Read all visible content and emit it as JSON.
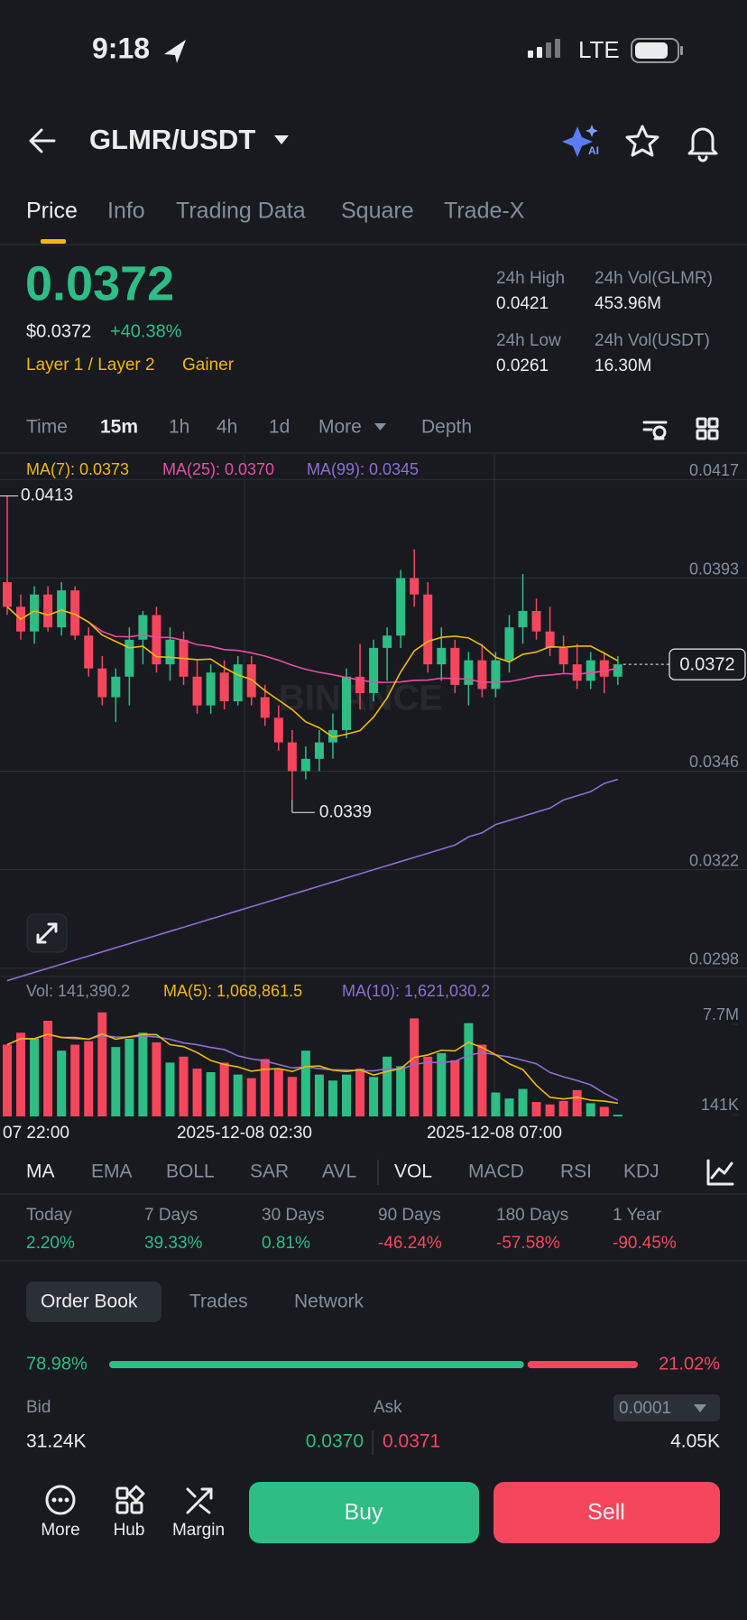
{
  "status": {
    "time": "9:18",
    "network": "LTE"
  },
  "header": {
    "pair": "GLMR/USDT"
  },
  "tabs": [
    "Price",
    "Info",
    "Trading Data",
    "Square",
    "Trade-X"
  ],
  "price": {
    "last": "0.0372",
    "usd": "$0.0372",
    "change": "+40.38%",
    "tags": [
      "Layer 1 / Layer 2",
      "Gainer"
    ]
  },
  "stats": [
    {
      "label": "24h High",
      "value": "0.0421"
    },
    {
      "label": "24h Vol(GLMR)",
      "value": "453.96M"
    },
    {
      "label": "24h Low",
      "value": "0.0261"
    },
    {
      "label": "24h Vol(USDT)",
      "value": "16.30M"
    }
  ],
  "intervals": [
    "Time",
    "15m",
    "1h",
    "4h",
    "1d",
    "More",
    "Depth"
  ],
  "chart_data": {
    "type": "candlestick",
    "legend": [
      "MA(7): 0.0373",
      "MA(25): 0.0370",
      "MA(99): 0.0345"
    ],
    "watermark": "BINANCE",
    "candles": [
      [
        0.0392,
        0.0413,
        0.0384,
        0.0386
      ],
      [
        0.0386,
        0.0389,
        0.0378,
        0.038
      ],
      [
        0.038,
        0.0391,
        0.0377,
        0.0389
      ],
      [
        0.0389,
        0.0391,
        0.038,
        0.0381
      ],
      [
        0.0381,
        0.0392,
        0.0379,
        0.039
      ],
      [
        0.039,
        0.0391,
        0.0378,
        0.0379
      ],
      [
        0.0379,
        0.0381,
        0.0369,
        0.0371
      ],
      [
        0.0371,
        0.0374,
        0.0362,
        0.0364
      ],
      [
        0.0364,
        0.0371,
        0.0358,
        0.0369
      ],
      [
        0.0369,
        0.0381,
        0.0362,
        0.0378
      ],
      [
        0.0378,
        0.0385,
        0.0372,
        0.0384
      ],
      [
        0.0384,
        0.0386,
        0.037,
        0.0372
      ],
      [
        0.0372,
        0.0381,
        0.0368,
        0.0378
      ],
      [
        0.0378,
        0.038,
        0.0367,
        0.0369
      ],
      [
        0.0369,
        0.0373,
        0.036,
        0.0362
      ],
      [
        0.0362,
        0.0372,
        0.036,
        0.037
      ],
      [
        0.037,
        0.0373,
        0.0361,
        0.0363
      ],
      [
        0.0363,
        0.0374,
        0.0362,
        0.0372
      ],
      [
        0.0372,
        0.0374,
        0.0362,
        0.0364
      ],
      [
        0.0364,
        0.0367,
        0.0357,
        0.0359
      ],
      [
        0.0359,
        0.0362,
        0.0351,
        0.0353
      ],
      [
        0.0353,
        0.0356,
        0.0339,
        0.0346
      ],
      [
        0.0346,
        0.0352,
        0.0344,
        0.0349
      ],
      [
        0.0349,
        0.0356,
        0.0346,
        0.0353
      ],
      [
        0.0353,
        0.036,
        0.0349,
        0.0356
      ],
      [
        0.0356,
        0.0371,
        0.0354,
        0.0369
      ],
      [
        0.0369,
        0.0377,
        0.0361,
        0.0365
      ],
      [
        0.0365,
        0.0378,
        0.0363,
        0.0376
      ],
      [
        0.0376,
        0.0381,
        0.0368,
        0.0379
      ],
      [
        0.0379,
        0.0395,
        0.0376,
        0.0393
      ],
      [
        0.0393,
        0.04,
        0.0386,
        0.0389
      ],
      [
        0.0389,
        0.0392,
        0.037,
        0.0372
      ],
      [
        0.0372,
        0.0381,
        0.0368,
        0.0376
      ],
      [
        0.0376,
        0.0378,
        0.0365,
        0.0367
      ],
      [
        0.0367,
        0.0375,
        0.0362,
        0.0373
      ],
      [
        0.0373,
        0.0377,
        0.0364,
        0.0366
      ],
      [
        0.0366,
        0.0375,
        0.0364,
        0.0373
      ],
      [
        0.0373,
        0.0384,
        0.037,
        0.0381
      ],
      [
        0.0381,
        0.0394,
        0.0377,
        0.0385
      ],
      [
        0.0385,
        0.0388,
        0.0378,
        0.038
      ],
      [
        0.038,
        0.0386,
        0.0374,
        0.0376
      ],
      [
        0.0376,
        0.0379,
        0.037,
        0.0372
      ],
      [
        0.0372,
        0.0377,
        0.0366,
        0.0368
      ],
      [
        0.0368,
        0.0375,
        0.0366,
        0.0373
      ],
      [
        0.0373,
        0.0375,
        0.0365,
        0.0369
      ],
      [
        0.0369,
        0.0374,
        0.0367,
        0.0372
      ]
    ],
    "ma99": [
      0.0295,
      0.0296,
      0.0297,
      0.0298,
      0.0299,
      0.03,
      0.0301,
      0.0302,
      0.0303,
      0.0304,
      0.0305,
      0.0306,
      0.0307,
      0.0308,
      0.0309,
      0.031,
      0.0311,
      0.0312,
      0.0313,
      0.0314,
      0.0315,
      0.0316,
      0.0317,
      0.0318,
      0.0319,
      0.032,
      0.0321,
      0.0322,
      0.0323,
      0.0324,
      0.0325,
      0.0326,
      0.0327,
      0.0328,
      0.033,
      0.0331,
      0.0333,
      0.0334,
      0.0335,
      0.0336,
      0.0337,
      0.0339,
      0.034,
      0.0341,
      0.0343,
      0.0344
    ],
    "ylim": [
      0.0296,
      0.0423
    ],
    "yticks": [
      0.0417,
      0.0393,
      0.0346,
      0.0322,
      0.0298
    ],
    "high": 0.0413,
    "low": 0.0339,
    "last": 0.0372,
    "colors": {
      "up": "#2ebd85",
      "down": "#f6465d",
      "ma7": "#f0b90b",
      "ma25": "#e84ea3",
      "ma99": "#8e6fd0"
    },
    "x_labels": [
      "07 22:00",
      "2025-12-08 02:30",
      "2025-12-08 07:00"
    ],
    "volume": {
      "legend": [
        "Vol: 141,390.2",
        "MA(5): 1,068,861.5",
        "MA(10): 1,621,030.2"
      ],
      "values": [
        6000000,
        7000000,
        6500000,
        8000000,
        5500000,
        6000000,
        6300000,
        8700000,
        5800000,
        6500000,
        7000000,
        6200000,
        4500000,
        5000000,
        4000000,
        3700000,
        4500000,
        3500000,
        3200000,
        4800000,
        4000000,
        3300000,
        5500000,
        3500000,
        3000000,
        3500000,
        4000000,
        3300000,
        5000000,
        4200000,
        8200000,
        5000000,
        5300000,
        4700000,
        7800000,
        6000000,
        2000000,
        1500000,
        2300000,
        1200000,
        1000000,
        1300000,
        2200000,
        1100000,
        800000,
        141390.2
      ],
      "ylim": [
        0,
        9060000
      ],
      "yticks": [
        {
          "value": 7700000,
          "label": "7.7M"
        },
        {
          "value": 141000,
          "label": "141K"
        }
      ]
    }
  },
  "indicators": [
    "MA",
    "EMA",
    "BOLL",
    "SAR",
    "AVL",
    "VOL",
    "MACD",
    "RSI",
    "KDJ"
  ],
  "performance": [
    {
      "label": "Today",
      "value": "2.20%"
    },
    {
      "label": "7 Days",
      "value": "39.33%"
    },
    {
      "label": "30 Days",
      "value": "0.81%"
    },
    {
      "label": "90 Days",
      "value": "-46.24%"
    },
    {
      "label": "180 Days",
      "value": "-57.58%"
    },
    {
      "label": "1 Year",
      "value": "-90.45%"
    }
  ],
  "order_book": {
    "tabs": [
      "Order Book",
      "Trades",
      "Network"
    ],
    "bid_share": 78.98,
    "bid_share_label": "78.98%",
    "ask_share": 21.02,
    "ask_share_label": "21.02%",
    "bid_header": "Bid",
    "ask_header": "Ask",
    "precision": "0.0001",
    "bid_qty": "31.24K",
    "bid_price": "0.0370",
    "ask_price": "0.0371",
    "ask_qty": "4.05K"
  },
  "bottom_bar": {
    "items": [
      "More",
      "Hub",
      "Margin"
    ],
    "buy": "Buy",
    "sell": "Sell"
  }
}
